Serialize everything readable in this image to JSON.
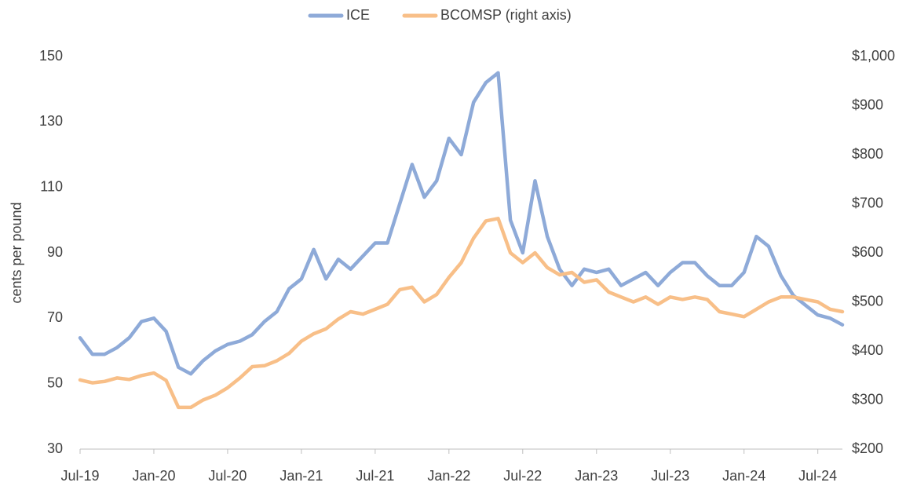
{
  "chart_data": {
    "type": "line",
    "x": [
      "2019-07",
      "2019-08",
      "2019-09",
      "2019-10",
      "2019-11",
      "2019-12",
      "2020-01",
      "2020-02",
      "2020-03",
      "2020-04",
      "2020-05",
      "2020-06",
      "2020-07",
      "2020-08",
      "2020-09",
      "2020-10",
      "2020-11",
      "2020-12",
      "2021-01",
      "2021-02",
      "2021-03",
      "2021-04",
      "2021-05",
      "2021-06",
      "2021-07",
      "2021-08",
      "2021-09",
      "2021-10",
      "2021-11",
      "2021-12",
      "2022-01",
      "2022-02",
      "2022-03",
      "2022-04",
      "2022-05",
      "2022-06",
      "2022-07",
      "2022-08",
      "2022-09",
      "2022-10",
      "2022-11",
      "2022-12",
      "2023-01",
      "2023-02",
      "2023-03",
      "2023-04",
      "2023-05",
      "2023-06",
      "2023-07",
      "2023-08",
      "2023-09",
      "2023-10",
      "2023-11",
      "2023-12",
      "2024-01",
      "2024-02",
      "2024-03",
      "2024-04",
      "2024-05",
      "2024-06",
      "2024-07",
      "2024-08",
      "2024-09"
    ],
    "series": [
      {
        "name": "ICE",
        "color": "#8eaad8",
        "values": [
          64,
          59,
          59,
          61,
          64,
          69,
          70,
          66,
          55,
          53,
          57,
          60,
          62,
          63,
          65,
          69,
          72,
          79,
          82,
          91,
          82,
          88,
          85,
          89,
          93,
          93,
          105,
          117,
          107,
          112,
          125,
          120,
          136,
          142,
          145,
          100,
          90,
          112,
          95,
          85,
          80,
          85,
          84,
          85,
          80,
          82,
          84,
          80,
          84,
          87,
          87,
          83,
          80,
          80,
          84,
          95,
          92,
          83,
          77,
          74,
          71,
          70,
          68
        ]
      },
      {
        "name": "BCOMSP (right axis)",
        "color": "#f8bf88",
        "axis": "y2",
        "values": [
          341,
          335,
          338,
          345,
          342,
          350,
          355,
          340,
          285,
          285,
          300,
          310,
          325,
          345,
          368,
          370,
          380,
          395,
          420,
          435,
          445,
          465,
          480,
          475,
          485,
          495,
          525,
          530,
          500,
          515,
          550,
          580,
          630,
          665,
          670,
          600,
          580,
          600,
          570,
          555,
          560,
          540,
          545,
          520,
          510,
          500,
          510,
          495,
          510,
          505,
          510,
          505,
          480,
          475,
          470,
          485,
          500,
          510,
          510,
          505,
          500,
          485,
          480
        ]
      }
    ],
    "y_label": "cents per pound",
    "xlim": [
      "2019-07",
      "2024-09"
    ],
    "xticks": [
      {
        "value": "2019-07",
        "label": "Jul-19"
      },
      {
        "value": "2020-01",
        "label": "Jan-20"
      },
      {
        "value": "2020-07",
        "label": "Jul-20"
      },
      {
        "value": "2021-01",
        "label": "Jan-21"
      },
      {
        "value": "2021-07",
        "label": "Jul-21"
      },
      {
        "value": "2022-01",
        "label": "Jan-22"
      },
      {
        "value": "2022-07",
        "label": "Jul-22"
      },
      {
        "value": "2023-01",
        "label": "Jan-23"
      },
      {
        "value": "2023-07",
        "label": "Jul-23"
      },
      {
        "value": "2024-01",
        "label": "Jan-24"
      },
      {
        "value": "2024-07",
        "label": "Jul-24"
      }
    ],
    "ylim": [
      30,
      150
    ],
    "yticks": [
      30,
      50,
      70,
      90,
      110,
      130,
      150
    ],
    "y2lim": [
      200,
      1000
    ],
    "y2ticks": [
      {
        "value": 200,
        "label": "$200"
      },
      {
        "value": 300,
        "label": "$300"
      },
      {
        "value": 400,
        "label": "$400"
      },
      {
        "value": 500,
        "label": "$500"
      },
      {
        "value": 600,
        "label": "$600"
      },
      {
        "value": 700,
        "label": "$700"
      },
      {
        "value": 800,
        "label": "$800"
      },
      {
        "value": 900,
        "label": "$900"
      },
      {
        "value": 1000,
        "label": "$1,000"
      }
    ],
    "legend": "top"
  }
}
